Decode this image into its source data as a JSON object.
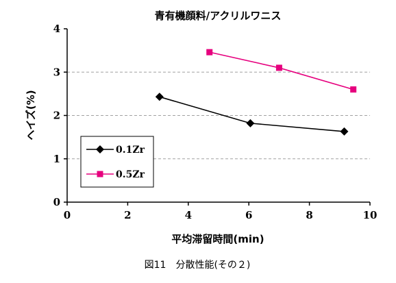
{
  "figure_caption": "図11　分散性能(その２)",
  "chart_data": {
    "type": "line",
    "title": "青有機顔料/アクリルワニス",
    "xlabel": "平均滞留時間(min)",
    "ylabel": "ヘイズ(%)",
    "xlim": [
      0,
      10
    ],
    "ylim": [
      0,
      4
    ],
    "xticks": [
      "0",
      "2",
      "4",
      "6",
      "8",
      "10"
    ],
    "yticks": [
      "0",
      "1",
      "2",
      "3",
      "4"
    ],
    "grid": "horizontal-dashed",
    "legend_position": "bottom-left",
    "series": [
      {
        "name": "0.1Zr",
        "color": "#000000",
        "marker": "diamond",
        "x": [
          3.05,
          6.05,
          9.15
        ],
        "y": [
          2.43,
          1.82,
          1.63
        ]
      },
      {
        "name": "0.5Zr",
        "color": "#e6007e",
        "marker": "square",
        "x": [
          4.7,
          7.0,
          9.45
        ],
        "y": [
          3.46,
          3.1,
          2.6
        ]
      }
    ]
  }
}
